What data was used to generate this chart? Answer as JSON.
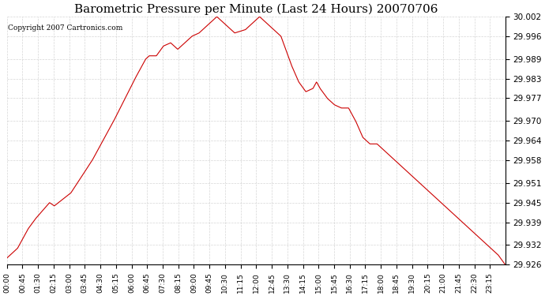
{
  "title": "Barometric Pressure per Minute (Last 24 Hours) 20070706",
  "copyright_text": "Copyright 2007 Cartronics.com",
  "line_color": "#cc0000",
  "background_color": "#ffffff",
  "grid_color": "#cccccc",
  "ylim": [
    29.926,
    30.002
  ],
  "yticks": [
    29.926,
    29.932,
    29.939,
    29.945,
    29.951,
    29.958,
    29.964,
    29.97,
    29.977,
    29.983,
    29.989,
    29.996,
    30.002
  ],
  "xtick_labels": [
    "00:00",
    "00:45",
    "01:30",
    "02:15",
    "03:00",
    "03:45",
    "04:30",
    "05:15",
    "06:00",
    "06:45",
    "07:30",
    "08:15",
    "09:00",
    "09:45",
    "10:30",
    "11:15",
    "12:00",
    "12:45",
    "13:30",
    "14:15",
    "15:00",
    "15:45",
    "16:30",
    "17:15",
    "18:00",
    "18:45",
    "19:30",
    "20:15",
    "21:00",
    "21:45",
    "22:30",
    "23:15"
  ],
  "key_points": [
    [
      0,
      29.928
    ],
    [
      30,
      29.928
    ],
    [
      45,
      29.931
    ],
    [
      60,
      29.932
    ],
    [
      75,
      29.934
    ],
    [
      90,
      29.937
    ],
    [
      105,
      29.938
    ],
    [
      120,
      29.94
    ],
    [
      135,
      29.941
    ],
    [
      150,
      29.943
    ],
    [
      165,
      29.944
    ],
    [
      180,
      29.945
    ],
    [
      195,
      29.945
    ],
    [
      210,
      29.944
    ],
    [
      225,
      29.945
    ],
    [
      240,
      29.946
    ],
    [
      255,
      29.947
    ],
    [
      270,
      29.948
    ],
    [
      285,
      29.951
    ],
    [
      300,
      29.952
    ],
    [
      315,
      29.953
    ],
    [
      330,
      29.955
    ],
    [
      345,
      29.957
    ],
    [
      360,
      29.958
    ],
    [
      375,
      29.959
    ],
    [
      390,
      29.961
    ],
    [
      405,
      29.963
    ],
    [
      420,
      29.965
    ],
    [
      435,
      29.968
    ],
    [
      450,
      29.97
    ],
    [
      465,
      29.972
    ],
    [
      480,
      29.975
    ],
    [
      495,
      29.978
    ],
    [
      510,
      29.98
    ],
    [
      525,
      29.983
    ],
    [
      540,
      29.985
    ],
    [
      555,
      29.986
    ],
    [
      570,
      29.988
    ],
    [
      585,
      29.989
    ],
    [
      600,
      29.99
    ],
    [
      615,
      29.99
    ],
    [
      630,
      29.99
    ],
    [
      645,
      29.992
    ],
    [
      660,
      29.993
    ],
    [
      675,
      29.994
    ],
    [
      690,
      29.994
    ],
    [
      705,
      29.993
    ],
    [
      720,
      29.992
    ],
    [
      735,
      29.993
    ],
    [
      750,
      29.994
    ],
    [
      765,
      29.995
    ],
    [
      780,
      29.996
    ],
    [
      795,
      29.997
    ],
    [
      810,
      29.997
    ],
    [
      825,
      29.998
    ],
    [
      840,
      29.999
    ],
    [
      855,
      30.0
    ],
    [
      870,
      30.001
    ],
    [
      885,
      30.002
    ],
    [
      900,
      30.001
    ],
    [
      915,
      30.0
    ],
    [
      930,
      29.999
    ],
    [
      945,
      29.998
    ],
    [
      960,
      29.997
    ],
    [
      975,
      29.996
    ],
    [
      990,
      29.997
    ],
    [
      1005,
      29.998
    ],
    [
      1020,
      29.999
    ],
    [
      1035,
      30.0
    ],
    [
      1050,
      30.001
    ],
    [
      1065,
      30.002
    ],
    [
      1080,
      30.001
    ],
    [
      1095,
      30.0
    ],
    [
      1110,
      29.999
    ],
    [
      1125,
      29.998
    ],
    [
      1140,
      29.997
    ],
    [
      1155,
      29.996
    ],
    [
      1170,
      29.993
    ],
    [
      1185,
      29.99
    ],
    [
      1200,
      29.987
    ],
    [
      1215,
      29.985
    ],
    [
      1230,
      29.982
    ],
    [
      1245,
      29.98
    ],
    [
      1260,
      29.979
    ],
    [
      1275,
      29.978
    ],
    [
      1290,
      29.98
    ],
    [
      1305,
      29.982
    ],
    [
      1320,
      29.98
    ],
    [
      1335,
      29.978
    ],
    [
      1350,
      29.977
    ],
    [
      1365,
      29.976
    ],
    [
      1380,
      29.975
    ],
    [
      1395,
      29.974
    ],
    [
      1410,
      29.974
    ],
    [
      1425,
      29.975
    ],
    [
      1440,
      29.974
    ],
    [
      1455,
      29.972
    ],
    [
      1470,
      29.97
    ],
    [
      1485,
      29.967
    ],
    [
      1500,
      29.965
    ],
    [
      1515,
      29.964
    ],
    [
      1530,
      29.963
    ],
    [
      1545,
      29.964
    ],
    [
      1560,
      29.963
    ],
    [
      1575,
      29.962
    ],
    [
      1590,
      29.961
    ],
    [
      1605,
      29.96
    ],
    [
      1620,
      29.959
    ],
    [
      1635,
      29.958
    ],
    [
      1650,
      29.957
    ],
    [
      1665,
      29.956
    ],
    [
      1680,
      29.955
    ],
    [
      1695,
      29.954
    ],
    [
      1710,
      29.953
    ],
    [
      1725,
      29.952
    ],
    [
      1740,
      29.951
    ],
    [
      1755,
      29.95
    ],
    [
      1770,
      29.949
    ],
    [
      1785,
      29.948
    ],
    [
      1800,
      29.947
    ],
    [
      1815,
      29.946
    ],
    [
      1830,
      29.945
    ],
    [
      1845,
      29.944
    ],
    [
      1860,
      29.943
    ],
    [
      1875,
      29.942
    ],
    [
      1890,
      29.941
    ],
    [
      1905,
      29.94
    ],
    [
      1920,
      29.939
    ],
    [
      1935,
      29.938
    ],
    [
      1950,
      29.937
    ],
    [
      1965,
      29.936
    ],
    [
      1980,
      29.935
    ],
    [
      1995,
      29.934
    ],
    [
      2010,
      29.933
    ],
    [
      2025,
      29.932
    ],
    [
      2040,
      29.931
    ],
    [
      2055,
      29.93
    ],
    [
      2070,
      29.929
    ],
    [
      2085,
      29.928
    ],
    [
      2100,
      29.926
    ]
  ]
}
